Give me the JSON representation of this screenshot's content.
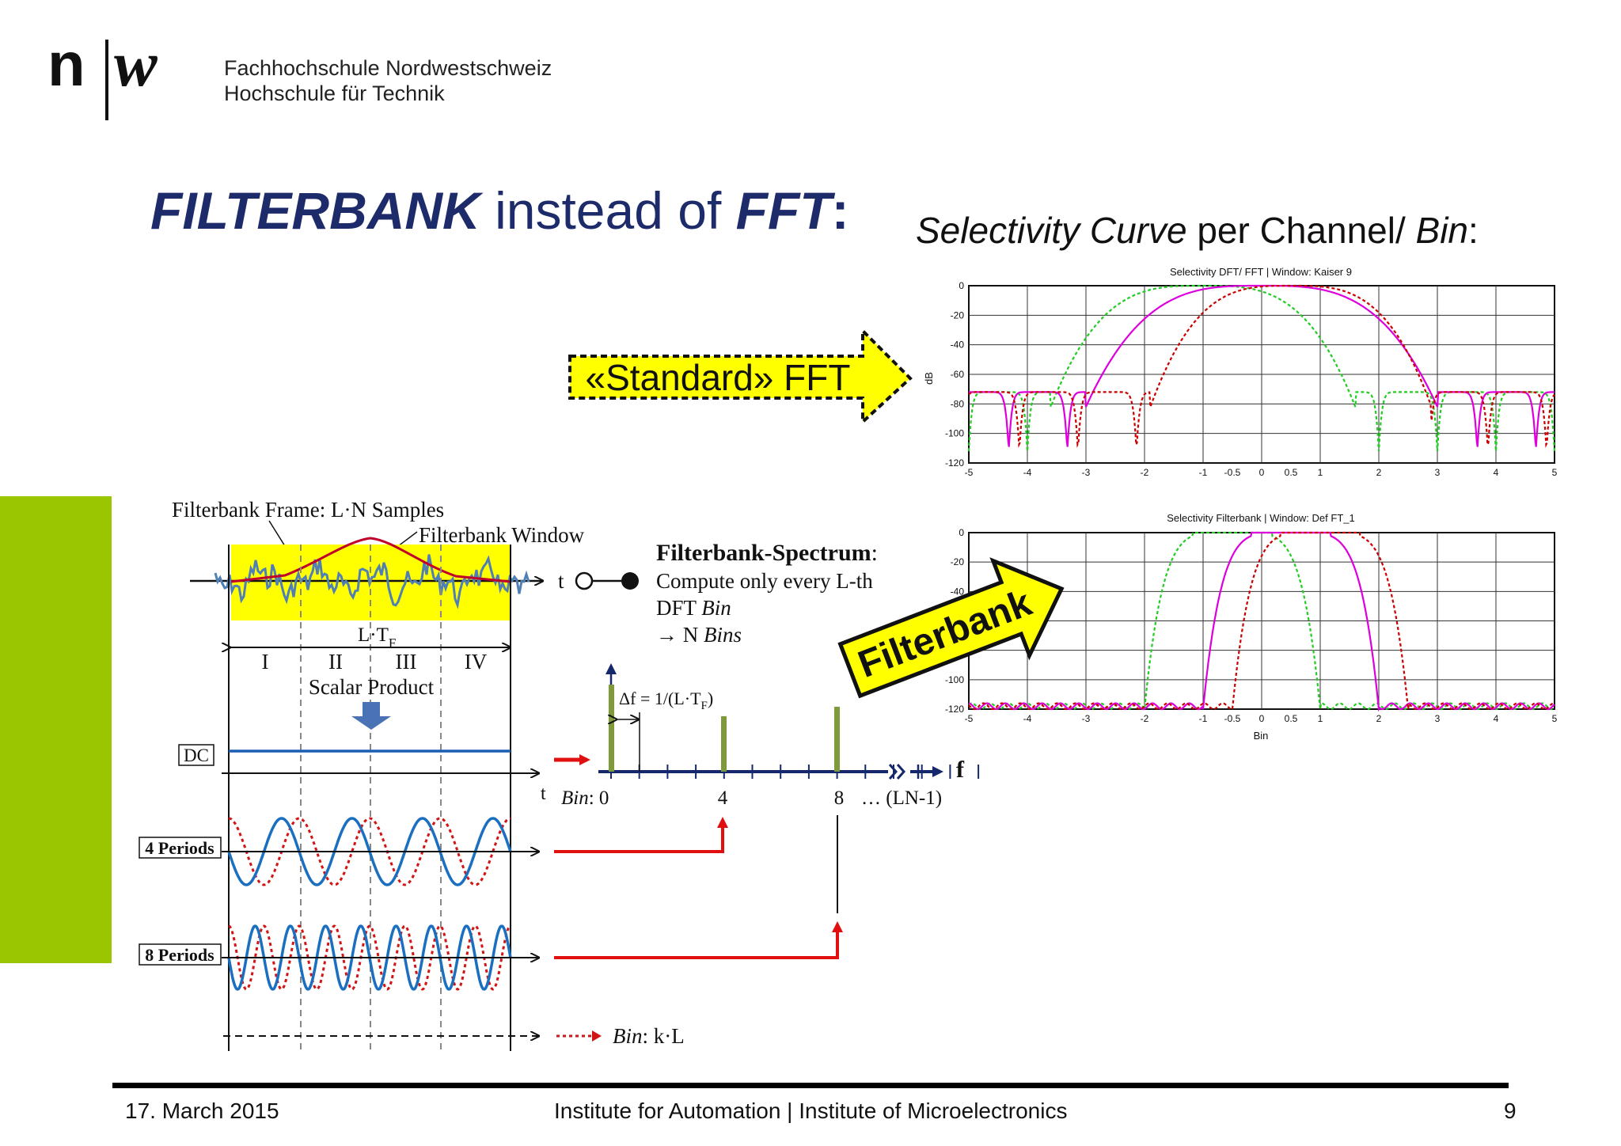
{
  "header": {
    "school_name": "Fachhochschule Nordwestschweiz",
    "school_sub": "Hochschule für Technik"
  },
  "title": {
    "part1": "FILTERBANK",
    "part2": " instead of ",
    "part3": "FFT",
    "part4": ":"
  },
  "selectivity_heading": {
    "part1": "Selectivity Curve",
    "part2": " per Channel/ ",
    "part3": "Bin",
    "part4": ":"
  },
  "callouts": {
    "standard_fft": "«Standard» FFT",
    "filterbank": "Filterbank"
  },
  "diagram": {
    "frame_label": "Filterbank Frame: L·N Samples",
    "window_label": "Filterbank Window",
    "t_label": "t",
    "ltf_label": "L·T",
    "ltf_sub": "F",
    "regions": [
      "I",
      "II",
      "III",
      "IV"
    ],
    "scalar_product": "Scalar Product",
    "dc_label": "DC",
    "four_periods": "4 Periods",
    "eight_periods": "8 Periods",
    "spectrum_title": "Filterbank-Spectrum",
    "spectrum_line2": "Compute only every L-th",
    "spectrum_line3a": "DFT ",
    "spectrum_line3b": "Bin",
    "spectrum_line4a": "→ N ",
    "spectrum_line4b": "Bins",
    "delta_f": "Δf = 1/(L·T",
    "delta_f_sub": "F",
    "delta_f_end": ")",
    "f_label": "f",
    "bin_label": "Bin",
    "bin_values": [
      "0",
      "4",
      "8",
      "… (LN-1)"
    ],
    "bin_kl": "Bin",
    "bin_kl_suffix": ": k·L"
  },
  "charts": {
    "fft_title": "Selectivity DFT/ FFT | Window: Kaiser 9",
    "fb_title": "Selectivity Filterbank | Window: Def FT_1",
    "ylabel": "dB",
    "xlabel": "Bin",
    "yticks": [
      "0",
      "-20",
      "-40",
      "-60",
      "-80",
      "-100",
      "-120"
    ],
    "xticks": [
      "-5",
      "-4",
      "-3",
      "-2",
      "-1",
      "-0.5",
      "0",
      "0.5",
      "1",
      "2",
      "3",
      "4",
      "5"
    ]
  },
  "chart_data": [
    {
      "type": "line",
      "title": "Selectivity DFT/ FFT | Window: Kaiser 9",
      "ylabel": "dB",
      "xlim": [
        -5,
        5
      ],
      "ylim": [
        -120,
        0
      ],
      "series": [
        {
          "color": "#22cc22",
          "center": -1.0,
          "mainlobe_halfwidth": 2.6,
          "sidelobe_level_db": -82
        },
        {
          "color": "#dd00dd",
          "center": 0.0,
          "mainlobe_halfwidth": 3.0,
          "sidelobe_level_db": -82
        },
        {
          "color": "#cc0000",
          "center": 0.5,
          "mainlobe_halfwidth": 2.4,
          "sidelobe_level_db": -82
        }
      ]
    },
    {
      "type": "line",
      "title": "Selectivity Filterbank | Window: Def FT_1",
      "xlabel": "Bin",
      "ylabel": "dB",
      "xlim": [
        -5,
        5
      ],
      "ylim": [
        -120,
        0
      ],
      "series": [
        {
          "color": "#22cc22",
          "center": -0.5,
          "mainlobe_halfwidth": 1.5,
          "sidelobe_level_db": -120
        },
        {
          "color": "#dd00dd",
          "center": 0.5,
          "mainlobe_halfwidth": 1.5,
          "sidelobe_level_db": -120
        },
        {
          "color": "#cc0000",
          "center": 1.0,
          "mainlobe_halfwidth": 1.5,
          "sidelobe_level_db": -120
        }
      ]
    }
  ],
  "footer": {
    "date": "17. March 2015",
    "institutes": "Institute for Automation | Institute of Microelectronics",
    "page": "9"
  }
}
